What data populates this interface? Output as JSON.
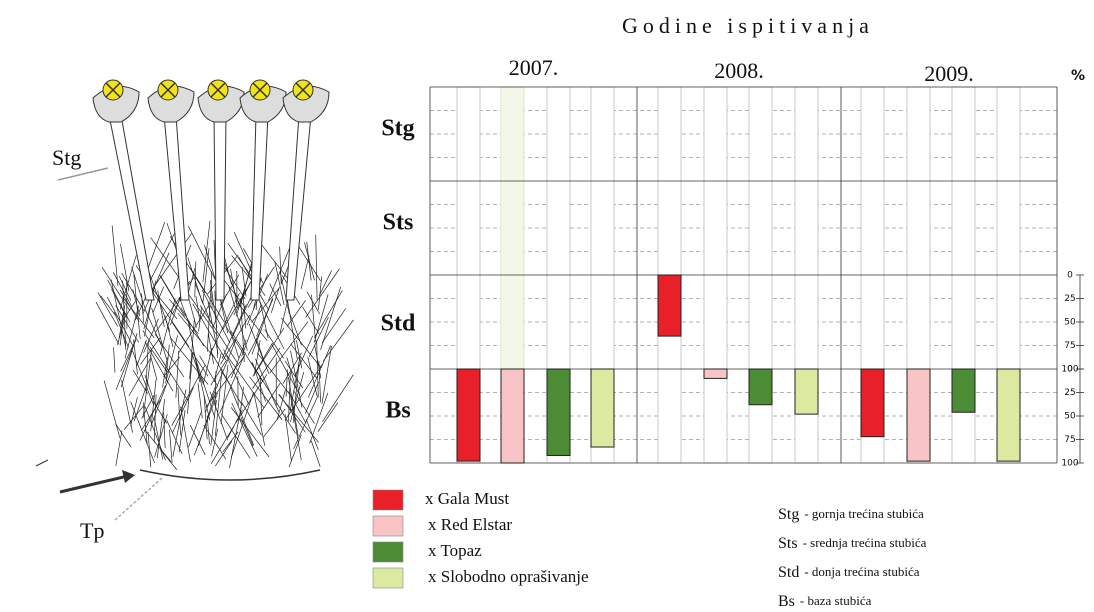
{
  "chart_data": {
    "type": "bar",
    "title": "Godine ispitivanja",
    "categories": [
      "2007.",
      "2008.",
      "2009."
    ],
    "rows": [
      "Stg",
      "Sts",
      "Std",
      "Bs"
    ],
    "unit": "%",
    "ylim": [
      0,
      100
    ],
    "yticks": [
      0,
      25,
      50,
      75,
      100
    ],
    "series": [
      {
        "name": "x Gala Must",
        "color": "#e8202a",
        "values": [
          98,
          65,
          72
        ],
        "zones": [
          "Bs",
          "Std",
          "Bs"
        ]
      },
      {
        "name": "x Red Elstar",
        "color": "#f8c4c6",
        "values": [
          100,
          10,
          98
        ],
        "zones": [
          "Bs",
          "Bs",
          "Bs"
        ]
      },
      {
        "name": "x Topaz",
        "color": "#4c8c34",
        "values": [
          92,
          38,
          46
        ],
        "zones": [
          "Bs",
          "Bs",
          "Bs"
        ]
      },
      {
        "name": "x Slobodno oprašivanje",
        "color": "#dce9a0",
        "values": [
          83,
          48,
          98
        ],
        "zones": [
          "Bs",
          "Bs",
          "Bs"
        ]
      }
    ],
    "abbreviations": [
      {
        "abbr": "Stg",
        "text": "- gornja trećina stubića"
      },
      {
        "abbr": "Sts",
        "text": "- srednja trećina stubića"
      },
      {
        "abbr": "Std",
        "text": "- donja trećina stubića"
      },
      {
        "abbr": "Bs",
        "text": "- baza stubića"
      }
    ]
  },
  "illustration": {
    "labels": [
      "Stg",
      "Tp"
    ]
  }
}
